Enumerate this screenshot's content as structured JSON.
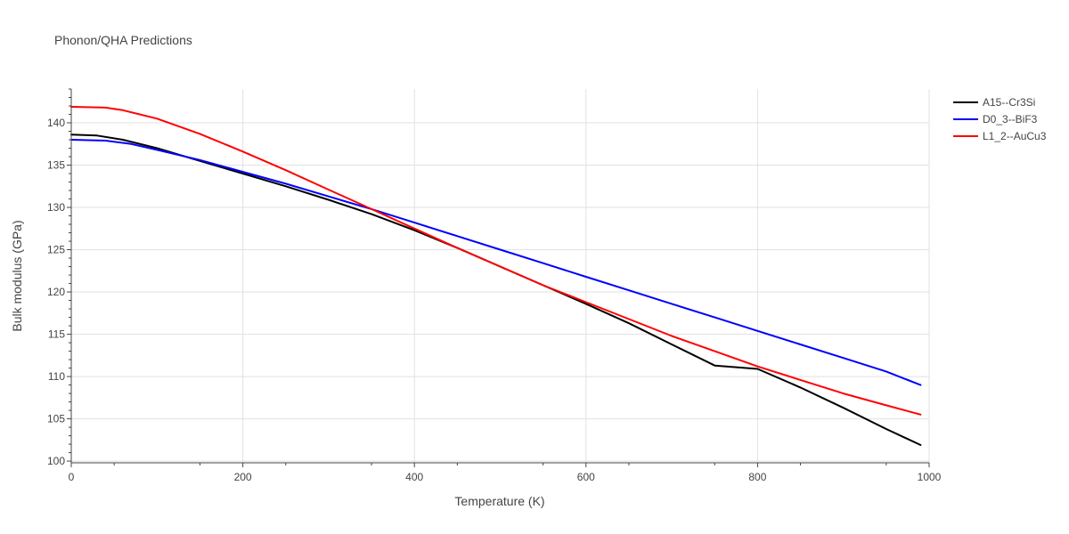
{
  "chart_data": {
    "type": "line",
    "title": "Phonon/QHA Predictions",
    "xlabel": "Temperature (K)",
    "ylabel": "Bulk modulus (GPa)",
    "xlim": [
      0,
      1000
    ],
    "ylim": [
      99.8,
      144
    ],
    "x_ticks": [
      0,
      200,
      400,
      600,
      800,
      1000
    ],
    "x_tick_labels": [
      "0",
      "200",
      "400",
      "600",
      "800",
      "1000"
    ],
    "y_ticks": [
      100,
      105,
      110,
      115,
      120,
      125,
      130,
      135,
      140
    ],
    "y_tick_labels": [
      "100",
      "105",
      "110",
      "115",
      "120",
      "125",
      "130",
      "135",
      "140"
    ],
    "grid": true,
    "legend_position": "top-right",
    "series": [
      {
        "name": "A15--Cr3Si",
        "color": "#000000",
        "x": [
          0,
          30,
          60,
          100,
          150,
          200,
          250,
          300,
          350,
          400,
          450,
          500,
          550,
          600,
          650,
          700,
          750,
          800,
          850,
          900,
          950,
          990
        ],
        "y": [
          138.6,
          138.5,
          138.0,
          137.0,
          135.5,
          134.0,
          132.5,
          130.9,
          129.2,
          127.3,
          125.2,
          123.0,
          120.8,
          118.6,
          116.3,
          113.8,
          111.3,
          110.9,
          108.7,
          106.3,
          103.8,
          101.9
        ]
      },
      {
        "name": "D0_3--BiF3",
        "color": "#0000ff",
        "x": [
          0,
          40,
          70,
          100,
          150,
          200,
          250,
          300,
          350,
          400,
          450,
          500,
          550,
          600,
          650,
          700,
          750,
          800,
          850,
          900,
          950,
          990
        ],
        "y": [
          138.0,
          137.9,
          137.5,
          136.8,
          135.6,
          134.2,
          132.8,
          131.3,
          129.8,
          128.2,
          126.6,
          125.0,
          123.4,
          121.8,
          120.2,
          118.6,
          117.0,
          115.4,
          113.8,
          112.2,
          110.6,
          109.0
        ]
      },
      {
        "name": "L1_2--AuCu3",
        "color": "#ff0000",
        "x": [
          0,
          40,
          60,
          100,
          150,
          200,
          250,
          300,
          350,
          400,
          450,
          500,
          550,
          600,
          650,
          700,
          750,
          800,
          850,
          900,
          950,
          990
        ],
        "y": [
          141.9,
          141.8,
          141.5,
          140.5,
          138.7,
          136.6,
          134.4,
          132.1,
          129.8,
          127.5,
          125.2,
          123.0,
          120.8,
          118.8,
          116.8,
          114.8,
          113.0,
          111.2,
          109.6,
          108.0,
          106.6,
          105.5
        ]
      }
    ]
  }
}
